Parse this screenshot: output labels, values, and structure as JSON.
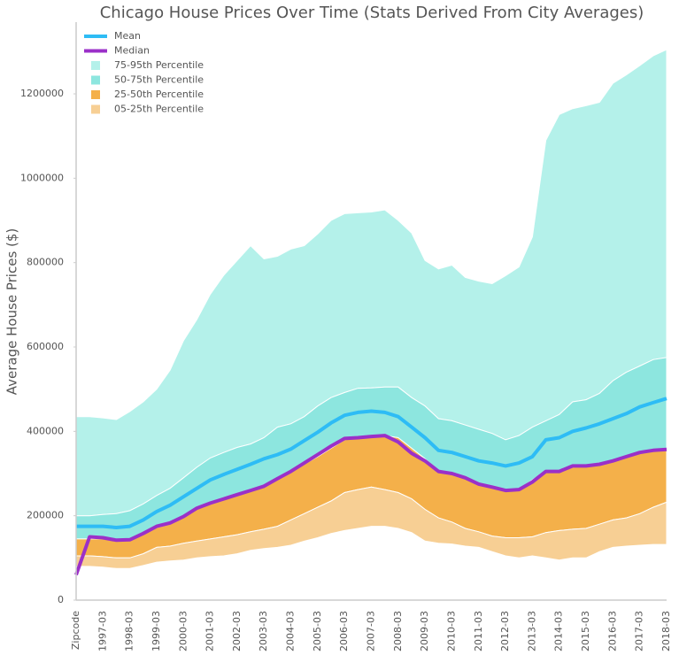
{
  "chart_data": {
    "type": "band",
    "title": "Chicago House Prices Over Time (Stats Derived From City Averages)",
    "y_label": "Average House Prices ($)",
    "categories": [
      "Zipcode",
      null,
      "1997-03",
      null,
      "1998-03",
      null,
      "1999-03",
      null,
      "2000-03",
      null,
      "2001-03",
      null,
      "2002-03",
      null,
      "2003-03",
      null,
      "2004-03",
      null,
      "2005-03",
      null,
      "2006-03",
      null,
      "2007-03",
      null,
      "2008-03",
      null,
      "2009-03",
      null,
      "2010-03",
      null,
      "2011-03",
      null,
      "2012-03",
      null,
      "2013-03",
      null,
      "2014-03",
      null,
      "2015-03",
      null,
      "2016-03",
      null,
      "2017-03",
      null,
      "2018-03"
    ],
    "ylim": [
      0,
      1370000
    ],
    "yticks": [
      0,
      200000,
      400000,
      600000,
      800000,
      1000000,
      1200000
    ],
    "legend": "upper left",
    "series": [
      {
        "name": "Mean",
        "color": "#2ebcf5",
        "values": [
          175000,
          175000,
          175000,
          172000,
          175000,
          190000,
          210000,
          225000,
          245000,
          265000,
          285000,
          298000,
          310000,
          322000,
          335000,
          345000,
          358000,
          378000,
          398000,
          420000,
          438000,
          445000,
          448000,
          445000,
          435000,
          410000,
          385000,
          355000,
          350000,
          340000,
          330000,
          325000,
          318000,
          325000,
          340000,
          380000,
          385000,
          400000,
          408000,
          418000,
          430000,
          442000,
          458000,
          468000,
          478000
        ]
      },
      {
        "name": "Median",
        "color": "#9b30c8",
        "values": [
          60000,
          150000,
          148000,
          142000,
          143000,
          158000,
          175000,
          183000,
          198000,
          218000,
          230000,
          240000,
          250000,
          260000,
          270000,
          288000,
          305000,
          325000,
          345000,
          365000,
          383000,
          385000,
          388000,
          390000,
          375000,
          348000,
          330000,
          305000,
          300000,
          290000,
          275000,
          268000,
          260000,
          262000,
          280000,
          305000,
          305000,
          318000,
          318000,
          322000,
          330000,
          340000,
          350000,
          355000,
          357000
        ]
      }
    ],
    "bands": [
      {
        "name": "75-95th Percentile",
        "color": "#b4f1ea",
        "upper": [
          435000,
          435000,
          432000,
          428000,
          447000,
          470000,
          500000,
          545000,
          615000,
          665000,
          725000,
          770000,
          805000,
          840000,
          809000,
          815000,
          832000,
          840000,
          868000,
          900000,
          916000,
          918000,
          920000,
          925000,
          900000,
          870000,
          805000,
          785000,
          794000,
          765000,
          756000,
          750000,
          769000,
          790000,
          861000,
          1090000,
          1151000,
          1165000,
          1172000,
          1180000,
          1225000,
          1245000,
          1267000,
          1290000,
          1305000
        ],
        "lower": [
          200000,
          200000,
          203000,
          205000,
          212000,
          228000,
          248000,
          265000,
          290000,
          315000,
          337000,
          350000,
          362000,
          370000,
          385000,
          410000,
          418000,
          435000,
          460000,
          480000,
          492000,
          502000,
          503000,
          505000,
          505000,
          480000,
          460000,
          430000,
          425000,
          415000,
          405000,
          395000,
          380000,
          390000,
          410000,
          425000,
          440000,
          470000,
          475000,
          490000,
          520000,
          540000,
          555000,
          570000,
          575000
        ]
      },
      {
        "name": "50-75th Percentile",
        "color": "#8de6df",
        "upper": [
          200000,
          200000,
          203000,
          205000,
          212000,
          228000,
          248000,
          265000,
          290000,
          315000,
          337000,
          350000,
          362000,
          370000,
          385000,
          410000,
          418000,
          435000,
          460000,
          480000,
          492000,
          502000,
          503000,
          505000,
          505000,
          480000,
          460000,
          430000,
          425000,
          415000,
          405000,
          395000,
          380000,
          390000,
          410000,
          425000,
          440000,
          470000,
          475000,
          490000,
          520000,
          540000,
          555000,
          570000,
          575000
        ],
        "lower": [
          145000,
          145000,
          145000,
          142000,
          142000,
          155000,
          172000,
          180000,
          195000,
          215000,
          228000,
          238000,
          248000,
          258000,
          268000,
          285000,
          302000,
          322000,
          340000,
          360000,
          380000,
          385000,
          388000,
          390000,
          385000,
          360000,
          335000,
          305000,
          300000,
          290000,
          275000,
          265000,
          258000,
          262000,
          285000,
          305000,
          305000,
          315000,
          320000,
          325000,
          330000,
          340000,
          350000,
          355000,
          358000
        ]
      },
      {
        "name": "25-50th Percentile",
        "color": "#f4b04a",
        "upper": [
          145000,
          145000,
          145000,
          142000,
          142000,
          155000,
          172000,
          180000,
          195000,
          215000,
          228000,
          238000,
          248000,
          258000,
          268000,
          285000,
          302000,
          322000,
          340000,
          360000,
          380000,
          385000,
          388000,
          390000,
          385000,
          360000,
          335000,
          305000,
          300000,
          290000,
          275000,
          265000,
          258000,
          262000,
          285000,
          305000,
          305000,
          315000,
          320000,
          325000,
          330000,
          340000,
          350000,
          355000,
          358000
        ],
        "lower": [
          105000,
          105000,
          103000,
          100000,
          100000,
          110000,
          125000,
          128000,
          135000,
          140000,
          145000,
          150000,
          155000,
          162000,
          168000,
          175000,
          190000,
          205000,
          220000,
          235000,
          255000,
          262000,
          268000,
          262000,
          255000,
          240000,
          215000,
          195000,
          185000,
          170000,
          162000,
          152000,
          148000,
          148000,
          150000,
          160000,
          165000,
          168000,
          170000,
          180000,
          190000,
          195000,
          205000,
          220000,
          232000
        ]
      },
      {
        "name": "05-25th Percentile",
        "color": "#f7cf94",
        "upper": [
          105000,
          105000,
          103000,
          100000,
          100000,
          110000,
          125000,
          128000,
          135000,
          140000,
          145000,
          150000,
          155000,
          162000,
          168000,
          175000,
          190000,
          205000,
          220000,
          235000,
          255000,
          262000,
          268000,
          262000,
          255000,
          240000,
          215000,
          195000,
          185000,
          170000,
          162000,
          152000,
          148000,
          148000,
          150000,
          160000,
          165000,
          168000,
          170000,
          180000,
          190000,
          195000,
          205000,
          220000,
          232000
        ],
        "lower": [
          80000,
          80000,
          78000,
          75000,
          75000,
          82000,
          90000,
          93000,
          95000,
          100000,
          103000,
          105000,
          110000,
          118000,
          122000,
          125000,
          130000,
          140000,
          148000,
          158000,
          165000,
          170000,
          175000,
          175000,
          170000,
          160000,
          140000,
          135000,
          133000,
          128000,
          125000,
          115000,
          105000,
          100000,
          105000,
          100000,
          95000,
          100000,
          100000,
          115000,
          125000,
          128000,
          130000,
          132000,
          132000
        ]
      }
    ]
  }
}
